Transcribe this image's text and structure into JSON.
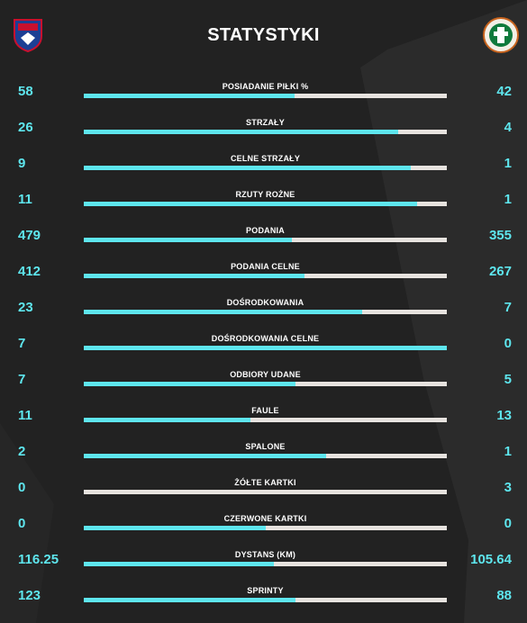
{
  "header": {
    "title": "STATYSTYKI",
    "home_crest": {
      "icon": "rakow-crest-icon",
      "text": "RAKÓW CZĘSTOCHOWA"
    },
    "away_crest": {
      "icon": "zaglebie-crest-icon",
      "text": "ZAGŁĘBIE LUBIN"
    }
  },
  "colors": {
    "background": "#222222",
    "accent": "#5ee6ee",
    "bar_track": "#e7e3df",
    "label": "#ffffff"
  },
  "stats": [
    {
      "label": "POSIADANIE PIŁKI %",
      "home": "58",
      "away": "42",
      "home_share": 0.58
    },
    {
      "label": "STRZAŁY",
      "home": "26",
      "away": "4",
      "home_share": 0.867
    },
    {
      "label": "CELNE STRZAŁY",
      "home": "9",
      "away": "1",
      "home_share": 0.9
    },
    {
      "label": "RZUTY ROŻNE",
      "home": "11",
      "away": "1",
      "home_share": 0.917
    },
    {
      "label": "PODANIA",
      "home": "479",
      "away": "355",
      "home_share": 0.574
    },
    {
      "label": "PODANIA CELNE",
      "home": "412",
      "away": "267",
      "home_share": 0.607
    },
    {
      "label": "DOŚRODKOWANIA",
      "home": "23",
      "away": "7",
      "home_share": 0.767
    },
    {
      "label": "DOŚRODKOWANIA CELNE",
      "home": "7",
      "away": "0",
      "home_share": 1.0
    },
    {
      "label": "ODBIORY UDANE",
      "home": "7",
      "away": "5",
      "home_share": 0.583
    },
    {
      "label": "FAULE",
      "home": "11",
      "away": "13",
      "home_share": 0.458
    },
    {
      "label": "SPALONE",
      "home": "2",
      "away": "1",
      "home_share": 0.667
    },
    {
      "label": "ŻÓŁTE KARTKI",
      "home": "0",
      "away": "3",
      "home_share": 0.0
    },
    {
      "label": "CZERWONE KARTKI",
      "home": "0",
      "away": "0",
      "home_share": 0.5
    },
    {
      "label": "DYSTANS (KM)",
      "home": "116.25",
      "away": "105.64",
      "home_share": 0.524
    },
    {
      "label": "SPRINTY",
      "home": "123",
      "away": "88",
      "home_share": 0.583
    }
  ]
}
